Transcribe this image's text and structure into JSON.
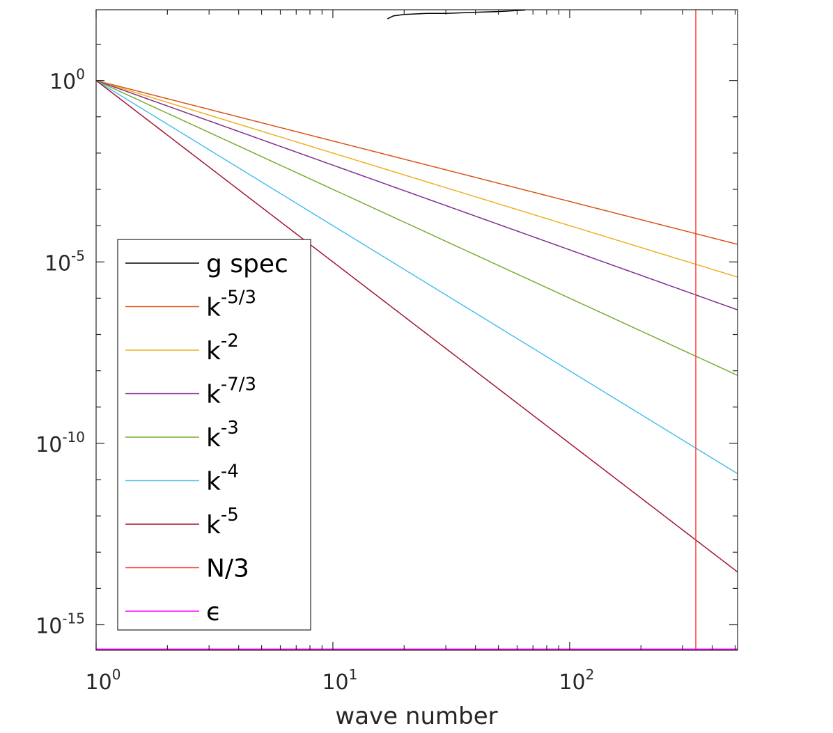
{
  "chart_data": {
    "type": "line",
    "title": "",
    "xlabel": "wave number",
    "ylabel": "",
    "xscale": "log",
    "yscale": "log",
    "xlim": [
      1,
      512
    ],
    "ylim_log10": [
      -15.7,
      1.95
    ],
    "x_ticks": [
      {
        "base": "10",
        "exp": "0",
        "value": 1
      },
      {
        "base": "10",
        "exp": "1",
        "value": 10
      },
      {
        "base": "10",
        "exp": "2",
        "value": 100
      }
    ],
    "y_ticks": [
      {
        "base": "10",
        "exp": "0",
        "log10": 0
      },
      {
        "base": "10",
        "exp": "-5",
        "log10": -5
      },
      {
        "base": "10",
        "exp": "-10",
        "log10": -10
      },
      {
        "base": "10",
        "exp": "-15",
        "log10": -15
      }
    ],
    "legend_position": "lower-left",
    "series": [
      {
        "key": "gspec",
        "label": "g spec",
        "exp": "",
        "color": "#000000",
        "kind": "data",
        "points": [
          [
            17.0,
            1.7
          ],
          [
            18.0,
            1.78
          ],
          [
            20.0,
            1.82
          ],
          [
            25.0,
            1.85
          ],
          [
            30.0,
            1.85
          ],
          [
            40.0,
            1.88
          ],
          [
            50.0,
            1.9
          ],
          [
            65.0,
            1.94
          ]
        ]
      },
      {
        "key": "k53",
        "label": "k",
        "exp": "-5/3",
        "color": "#D95319",
        "kind": "powerlaw",
        "slope": -1.6667
      },
      {
        "key": "k2",
        "label": "k",
        "exp": "-2",
        "color": "#EDB120",
        "kind": "powerlaw",
        "slope": -2
      },
      {
        "key": "k73",
        "label": "k",
        "exp": "-7/3",
        "color": "#7E2F8E",
        "kind": "powerlaw",
        "slope": -2.3333
      },
      {
        "key": "k3",
        "label": "k",
        "exp": "-3",
        "color": "#77AC30",
        "kind": "powerlaw",
        "slope": -3
      },
      {
        "key": "k4",
        "label": "k",
        "exp": "-4",
        "color": "#4DBEEE",
        "kind": "powerlaw",
        "slope": -4
      },
      {
        "key": "k5",
        "label": "k",
        "exp": "-5",
        "color": "#A2142F",
        "kind": "powerlaw",
        "slope": -5
      },
      {
        "key": "n3",
        "label": "N/3",
        "exp": "",
        "color": "#FF3B30",
        "kind": "vline",
        "x": 341
      },
      {
        "key": "eps",
        "label": "ϵ",
        "exp": "",
        "color": "#FF00FF",
        "kind": "hline",
        "log10": -15.7
      }
    ]
  }
}
